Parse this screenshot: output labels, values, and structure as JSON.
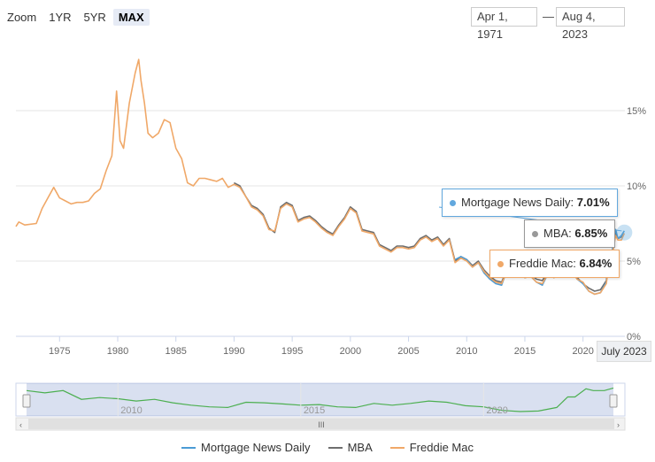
{
  "zoom": {
    "label": "Zoom",
    "buttons": [
      "1YR",
      "5YR",
      "MAX"
    ],
    "active": "MAX"
  },
  "range": {
    "from": "Apr 1, 1971",
    "separator": "—",
    "to": "Aug 4, 2023"
  },
  "colors": {
    "mnd": "#4b9bd5",
    "mba": "#6e6e6e",
    "freddie": "#f0a868",
    "navigator_line": "#4caf50",
    "tooltip_mnd": "#62a8de",
    "tooltip_mba": "#999999",
    "tooltip_freddie": "#f0a868"
  },
  "tooltips": {
    "mnd": {
      "name": "Mortgage News Daily",
      "value": "7.01%"
    },
    "mba": {
      "name": "MBA",
      "value": "6.85%"
    },
    "freddie": {
      "name": "Freddie Mac",
      "value": "6.84%"
    }
  },
  "crosshair_label": "July 2023",
  "navigator": {
    "labels": [
      "2010",
      "2015",
      "2020"
    ],
    "handle_label": "III"
  },
  "legend": [
    "Mortgage News Daily",
    "MBA",
    "Freddie Mac"
  ],
  "chart_data": {
    "type": "line",
    "title": "",
    "xlabel": "",
    "ylabel": "",
    "xlim": [
      1971.25,
      2023.6
    ],
    "ylim": [
      0,
      20
    ],
    "x_ticks": [
      "1975",
      "1980",
      "1985",
      "1990",
      "1995",
      "2000",
      "2005",
      "2010",
      "2015",
      "2020"
    ],
    "y_ticks": [
      "0%",
      "5%",
      "10%",
      "15%"
    ],
    "series": [
      {
        "name": "Freddie Mac",
        "x": [
          1971.25,
          1971.5,
          1972,
          1973,
          1973.5,
          1974,
          1974.5,
          1975,
          1975.5,
          1976,
          1976.5,
          1977,
          1977.5,
          1978,
          1978.5,
          1979,
          1979.5,
          1979.9,
          1980.2,
          1980.5,
          1981,
          1981.5,
          1981.8,
          1982,
          1982.3,
          1982.6,
          1983,
          1983.5,
          1984,
          1984.5,
          1985,
          1985.5,
          1986,
          1986.5,
          1987,
          1987.5,
          1988,
          1988.5,
          1989,
          1989.5,
          1990,
          1990.5,
          1991,
          1991.5,
          1992,
          1992.5,
          1993,
          1993.5,
          1994,
          1994.5,
          1995,
          1995.5,
          1996,
          1996.5,
          1997,
          1997.5,
          1998,
          1998.5,
          1999,
          1999.5,
          2000,
          2000.5,
          2001,
          2001.5,
          2002,
          2002.5,
          2003,
          2003.5,
          2004,
          2004.5,
          2005,
          2005.5,
          2006,
          2006.5,
          2007,
          2007.5,
          2008,
          2008.5,
          2009,
          2009.5,
          2010,
          2010.5,
          2011,
          2011.5,
          2012,
          2012.5,
          2013,
          2013.5,
          2014,
          2014.5,
          2015,
          2015.5,
          2016,
          2016.5,
          2017,
          2017.5,
          2018,
          2018.5,
          2019,
          2019.5,
          2020,
          2020.5,
          2021,
          2021.5,
          2022,
          2022.3,
          2022.5,
          2022.8,
          2023,
          2023.3,
          2023.55
        ],
        "values": [
          7.3,
          7.6,
          7.4,
          7.5,
          8.5,
          9.2,
          9.9,
          9.2,
          9.0,
          8.8,
          8.9,
          8.9,
          9.0,
          9.5,
          9.8,
          11.0,
          12.0,
          16.3,
          13.0,
          12.5,
          15.5,
          17.5,
          18.4,
          17.0,
          15.5,
          13.5,
          13.2,
          13.5,
          14.4,
          14.2,
          12.5,
          11.8,
          10.2,
          10.0,
          10.5,
          10.5,
          10.4,
          10.3,
          10.5,
          9.9,
          10.1,
          9.9,
          9.3,
          8.6,
          8.4,
          8.0,
          7.1,
          7.0,
          8.5,
          8.8,
          8.6,
          7.6,
          7.8,
          7.9,
          7.6,
          7.2,
          6.9,
          6.7,
          7.3,
          7.8,
          8.5,
          8.2,
          7.0,
          6.9,
          6.8,
          6.0,
          5.8,
          5.6,
          5.9,
          5.9,
          5.8,
          5.9,
          6.4,
          6.6,
          6.3,
          6.5,
          6.0,
          6.4,
          4.9,
          5.2,
          5.0,
          4.6,
          4.9,
          4.3,
          3.9,
          3.6,
          3.5,
          4.4,
          4.3,
          4.1,
          3.9,
          4.0,
          3.6,
          3.5,
          4.2,
          3.9,
          4.2,
          4.6,
          4.4,
          3.8,
          3.6,
          3.0,
          2.8,
          2.9,
          3.5,
          5.3,
          5.3,
          6.7,
          6.4,
          6.4,
          6.84
        ]
      },
      {
        "name": "MBA",
        "x": [
          1990,
          1990.5,
          1991,
          1991.5,
          1992,
          1992.5,
          1993,
          1993.5,
          1994,
          1994.5,
          1995,
          1995.5,
          1996,
          1996.5,
          1997,
          1997.5,
          1998,
          1998.5,
          1999,
          1999.5,
          2000,
          2000.5,
          2001,
          2001.5,
          2002,
          2002.5,
          2003,
          2003.5,
          2004,
          2004.5,
          2005,
          2005.5,
          2006,
          2006.5,
          2007,
          2007.5,
          2008,
          2008.5,
          2009,
          2009.5,
          2010,
          2010.5,
          2011,
          2011.5,
          2012,
          2012.5,
          2013,
          2013.5,
          2014,
          2014.5,
          2015,
          2015.5,
          2016,
          2016.5,
          2017,
          2017.5,
          2018,
          2018.5,
          2019,
          2019.5,
          2020,
          2020.5,
          2021,
          2021.5,
          2022,
          2022.3,
          2022.5,
          2022.8,
          2023,
          2023.3,
          2023.55
        ],
        "values": [
          10.2,
          10.0,
          9.3,
          8.7,
          8.5,
          8.1,
          7.2,
          6.9,
          8.6,
          8.9,
          8.7,
          7.7,
          7.9,
          8.0,
          7.7,
          7.3,
          7.0,
          6.8,
          7.4,
          7.9,
          8.6,
          8.3,
          7.1,
          7.0,
          6.9,
          6.1,
          5.9,
          5.7,
          6.0,
          6.0,
          5.9,
          6.0,
          6.5,
          6.7,
          6.4,
          6.6,
          6.1,
          6.5,
          5.0,
          5.3,
          5.1,
          4.7,
          5.0,
          4.4,
          4.0,
          3.7,
          3.6,
          4.5,
          4.4,
          4.2,
          4.0,
          4.1,
          3.8,
          3.7,
          4.3,
          4.0,
          4.3,
          4.8,
          4.5,
          3.9,
          3.5,
          3.2,
          3.0,
          3.1,
          3.7,
          5.4,
          5.5,
          6.9,
          6.5,
          6.6,
          6.85
        ]
      },
      {
        "name": "Mortgage News Daily",
        "x": [
          2009,
          2009.5,
          2010,
          2010.5,
          2011,
          2011.5,
          2012,
          2012.5,
          2013,
          2013.5,
          2014,
          2014.5,
          2015,
          2015.5,
          2016,
          2016.5,
          2017,
          2017.5,
          2018,
          2018.5,
          2019,
          2019.5,
          2020,
          2020.5,
          2021,
          2021.5,
          2022,
          2022.3,
          2022.5,
          2022.8,
          2023,
          2023.3,
          2023.55
        ],
        "values": [
          5.1,
          5.3,
          5.1,
          4.6,
          4.9,
          4.2,
          3.8,
          3.5,
          3.4,
          4.5,
          4.3,
          4.1,
          3.9,
          4.0,
          3.6,
          3.4,
          4.2,
          3.9,
          4.3,
          4.7,
          4.4,
          3.8,
          3.5,
          3.0,
          2.8,
          2.9,
          3.6,
          5.5,
          5.6,
          7.1,
          6.5,
          6.7,
          7.01
        ]
      }
    ],
    "navigator": {
      "x": [
        2007.5,
        2008,
        2008.5,
        2009,
        2009.5,
        2010,
        2010.5,
        2011,
        2011.5,
        2012,
        2012.5,
        2013,
        2013.5,
        2014,
        2014.5,
        2015,
        2015.5,
        2016,
        2016.5,
        2017,
        2017.5,
        2018,
        2018.5,
        2019,
        2019.5,
        2020,
        2020.5,
        2021,
        2021.5,
        2022,
        2022.3,
        2022.5,
        2022.8,
        2023,
        2023.3,
        2023.55
      ],
      "values": [
        6.4,
        6.0,
        6.4,
        4.9,
        5.2,
        5.0,
        4.6,
        4.9,
        4.3,
        3.9,
        3.6,
        3.5,
        4.4,
        4.3,
        4.1,
        3.9,
        4.0,
        3.6,
        3.5,
        4.2,
        3.9,
        4.2,
        4.6,
        4.4,
        3.8,
        3.6,
        3.0,
        2.8,
        2.9,
        3.5,
        5.3,
        5.3,
        6.7,
        6.4,
        6.4,
        6.84
      ]
    }
  }
}
